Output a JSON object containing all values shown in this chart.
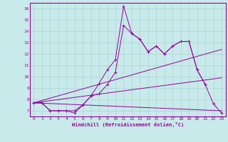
{
  "background_color": "#c8eaea",
  "grid_color": "#b0d8d8",
  "line_color": "#990099",
  "xlabel": "Windchill (Refroidissement éolien,°C)",
  "ylim": [
    6.5,
    16.5
  ],
  "xlim": [
    -0.5,
    23.5
  ],
  "yticks": [
    7,
    8,
    9,
    10,
    11,
    12,
    13,
    14,
    15,
    16
  ],
  "xticks": [
    0,
    1,
    2,
    3,
    4,
    5,
    6,
    7,
    8,
    9,
    10,
    11,
    12,
    13,
    14,
    15,
    16,
    17,
    18,
    19,
    20,
    21,
    22,
    23
  ],
  "series": [
    {
      "x": [
        0,
        1,
        2,
        3,
        4,
        5,
        6,
        7,
        8,
        9,
        10,
        11,
        12,
        13,
        14,
        15,
        16,
        17,
        18,
        19,
        20,
        21
      ],
      "y": [
        7.7,
        7.7,
        7.0,
        7.0,
        7.0,
        6.8,
        7.5,
        8.3,
        9.4,
        10.6,
        11.5,
        16.2,
        13.8,
        13.3,
        12.2,
        12.7,
        12.0,
        12.7,
        13.1,
        13.1,
        10.6,
        9.3
      ]
    },
    {
      "x": [
        0,
        1,
        2,
        3,
        4,
        5,
        6,
        7,
        8,
        9,
        10,
        11,
        12,
        13,
        14,
        15,
        16,
        17,
        18,
        19,
        20,
        21,
        22,
        23
      ],
      "y": [
        7.7,
        7.7,
        7.0,
        7.0,
        7.0,
        7.0,
        7.5,
        8.3,
        8.5,
        9.3,
        10.4,
        14.5,
        13.8,
        13.3,
        12.2,
        12.7,
        12.0,
        12.7,
        13.1,
        13.1,
        10.6,
        9.3,
        7.6,
        6.8
      ]
    },
    {
      "x": [
        0,
        23
      ],
      "y": [
        7.7,
        12.4
      ]
    },
    {
      "x": [
        0,
        23
      ],
      "y": [
        7.7,
        9.9
      ]
    },
    {
      "x": [
        0,
        23
      ],
      "y": [
        7.7,
        7.0
      ]
    }
  ]
}
